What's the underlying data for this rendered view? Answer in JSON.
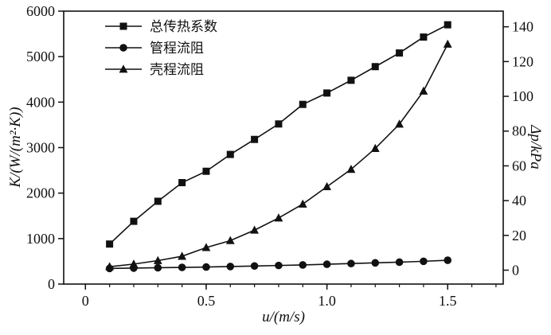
{
  "figure": {
    "x_axis_title": "u/(m/s)",
    "left_axis_title": "K/(W/(m²·K))",
    "right_axis_title": "Δp/kPa"
  },
  "chart_data": {
    "type": "line",
    "title": "",
    "xlabel": "u/(m/s)",
    "ylabel_left": "K/(W/(m²·K))",
    "ylabel_right": "Δp/kPa",
    "grid": false,
    "legend_position": "top-left",
    "x": [
      0.1,
      0.2,
      0.3,
      0.4,
      0.5,
      0.6,
      0.7,
      0.8,
      0.9,
      1.0,
      1.1,
      1.2,
      1.3,
      1.4,
      1.5
    ],
    "series": [
      {
        "name": "总传热系数",
        "axis": "left",
        "marker": "square",
        "values": [
          880,
          1380,
          1820,
          2230,
          2480,
          2850,
          3180,
          3520,
          3950,
          4200,
          4480,
          4780,
          5080,
          5430,
          5700
        ]
      },
      {
        "name": "管程流阻",
        "axis": "right",
        "marker": "circle",
        "values": [
          1.0,
          1.2,
          1.4,
          1.6,
          1.8,
          2.1,
          2.4,
          2.7,
          3.0,
          3.4,
          3.8,
          4.2,
          4.6,
          5.1,
          5.7
        ]
      },
      {
        "name": "壳程流阻",
        "axis": "right",
        "marker": "triangle",
        "values": [
          2,
          3.5,
          5.5,
          8,
          13,
          17,
          23,
          30,
          38,
          48,
          58,
          70,
          84,
          103,
          130
        ]
      }
    ],
    "xlim": [
      -0.09,
      1.73
    ],
    "x_ticks": [
      0,
      0.5,
      1.0,
      1.5
    ],
    "x_tick_labels": [
      "0",
      "0.5",
      "1.0",
      "1.5"
    ],
    "x_minor_step": 0.1,
    "x_minor_max": 1.7,
    "left_lim": [
      0,
      6000
    ],
    "left_ticks": [
      0,
      1000,
      2000,
      3000,
      4000,
      5000,
      6000
    ],
    "left_tick_labels": [
      "0",
      "1000",
      "2000",
      "3000",
      "4000",
      "5000",
      "6000"
    ],
    "right_lim": [
      -8,
      149
    ],
    "right_ticks": [
      0,
      20,
      40,
      60,
      80,
      100,
      120,
      140
    ],
    "right_tick_labels": [
      "0",
      "20",
      "40",
      "60",
      "80",
      "100",
      "120",
      "140"
    ],
    "colors": {
      "line": "#111111",
      "background": "#ffffff"
    }
  }
}
